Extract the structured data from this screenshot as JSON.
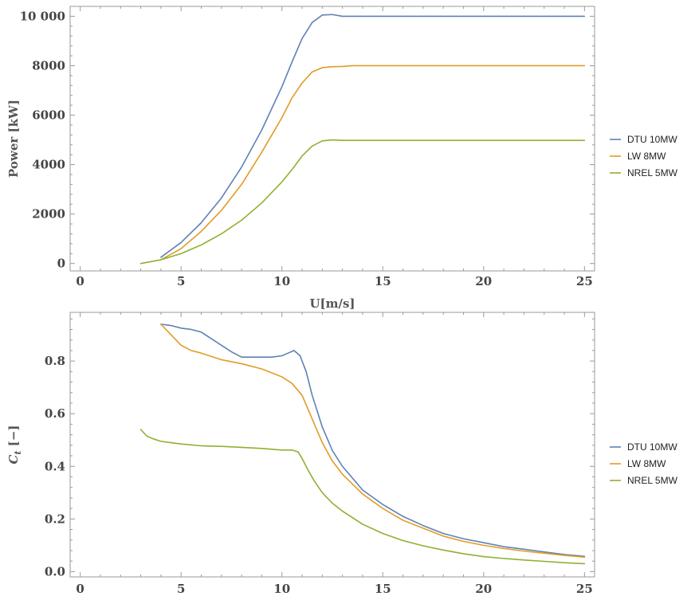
{
  "chart_data": [
    {
      "type": "line",
      "title": "",
      "xlabel": "U[m/s]",
      "ylabel": "Power [kW]",
      "xlim": [
        -0.5,
        25.5
      ],
      "ylim": [
        -300,
        10400
      ],
      "x_ticks": [
        0,
        5,
        10,
        15,
        20,
        25
      ],
      "x_tick_labels": [
        "0",
        "5",
        "10",
        "15",
        "20",
        "25"
      ],
      "y_ticks": [
        0,
        2000,
        4000,
        6000,
        8000,
        10000
      ],
      "y_tick_labels": [
        "0",
        "2000",
        "4000",
        "6000",
        "8000",
        "10 000"
      ],
      "grid": false,
      "legend_position": "right",
      "series": [
        {
          "name": "DTU 10MW",
          "color": "#5e81b5",
          "x": [
            4,
            5,
            6,
            7,
            8,
            9,
            10,
            10.5,
            11,
            11.5,
            12,
            12.5,
            13,
            14,
            16,
            18,
            20,
            22,
            25
          ],
          "y": [
            250,
            850,
            1650,
            2650,
            3900,
            5400,
            7150,
            8150,
            9100,
            9750,
            10050,
            10070,
            10000,
            10000,
            10000,
            10000,
            10000,
            10000,
            10000
          ]
        },
        {
          "name": "LW 8MW",
          "color": "#e19c24",
          "x": [
            4,
            5,
            6,
            7,
            8,
            9,
            10,
            10.5,
            11,
            11.5,
            12,
            12.5,
            13,
            13.5,
            15,
            18,
            20,
            22,
            25
          ],
          "y": [
            150,
            600,
            1300,
            2150,
            3200,
            4500,
            5900,
            6700,
            7300,
            7750,
            7920,
            7960,
            7970,
            8000,
            8000,
            8000,
            8000,
            8000,
            8000
          ]
        },
        {
          "name": "NREL 5MW",
          "color": "#8fb032",
          "x": [
            3,
            4,
            5,
            6,
            7,
            8,
            9,
            10,
            10.5,
            11,
            11.5,
            12,
            12.5,
            13,
            14,
            16,
            18,
            20,
            22,
            25
          ],
          "y": [
            0,
            150,
            400,
            750,
            1200,
            1750,
            2450,
            3300,
            3800,
            4350,
            4750,
            4960,
            5000,
            4980,
            4980,
            4980,
            4980,
            4980,
            4980,
            4980
          ]
        }
      ]
    },
    {
      "type": "line",
      "title": "",
      "xlabel": "",
      "ylabel": "C_t [−]",
      "ylabel_main": "C",
      "ylabel_sub": "t",
      "ylabel_rest": " [−]",
      "xlim": [
        -0.5,
        25.5
      ],
      "ylim": [
        -0.02,
        0.985
      ],
      "x_ticks": [
        0,
        5,
        10,
        15,
        20,
        25
      ],
      "x_tick_labels": [
        "0",
        "5",
        "10",
        "15",
        "20",
        "25"
      ],
      "y_ticks": [
        0,
        0.2,
        0.4,
        0.6,
        0.8
      ],
      "y_tick_labels": [
        "0.0",
        "0.2",
        "0.4",
        "0.6",
        "0.8"
      ],
      "grid": false,
      "legend_position": "right",
      "series": [
        {
          "name": "DTU 10MW",
          "color": "#5e81b5",
          "x": [
            4,
            4.5,
            5,
            5.5,
            6,
            6.5,
            7,
            7.5,
            8,
            8.5,
            9,
            9.5,
            10,
            10.3,
            10.6,
            10.9,
            11.2,
            11.5,
            12,
            12.5,
            13,
            14,
            15,
            16,
            17,
            18,
            19,
            20,
            21,
            22,
            23,
            24,
            25
          ],
          "y": [
            0.94,
            0.935,
            0.925,
            0.92,
            0.91,
            0.885,
            0.86,
            0.835,
            0.815,
            0.815,
            0.815,
            0.815,
            0.82,
            0.83,
            0.84,
            0.82,
            0.76,
            0.67,
            0.55,
            0.46,
            0.4,
            0.31,
            0.255,
            0.21,
            0.175,
            0.145,
            0.125,
            0.11,
            0.095,
            0.085,
            0.075,
            0.065,
            0.058
          ]
        },
        {
          "name": "LW 8MW",
          "color": "#e19c24",
          "x": [
            4,
            4.5,
            5,
            5.5,
            6,
            7,
            8,
            9,
            9.5,
            10,
            10.5,
            11,
            11.5,
            12,
            12.5,
            13,
            14,
            15,
            16,
            17,
            18,
            19,
            20,
            21,
            22,
            23,
            24,
            25
          ],
          "y": [
            0.94,
            0.9,
            0.86,
            0.84,
            0.83,
            0.805,
            0.79,
            0.77,
            0.755,
            0.74,
            0.715,
            0.67,
            0.58,
            0.49,
            0.42,
            0.37,
            0.295,
            0.24,
            0.195,
            0.165,
            0.135,
            0.115,
            0.1,
            0.088,
            0.078,
            0.07,
            0.062,
            0.055
          ]
        },
        {
          "name": "NREL 5MW",
          "color": "#8fb032",
          "x": [
            3,
            3.3,
            3.6,
            4,
            4.5,
            5,
            6,
            7,
            8,
            9,
            10,
            10.5,
            10.8,
            11,
            11.3,
            11.6,
            12,
            12.5,
            13,
            14,
            15,
            16,
            17,
            18,
            19,
            20,
            21,
            22,
            23,
            24,
            25
          ],
          "y": [
            0.54,
            0.515,
            0.505,
            0.495,
            0.49,
            0.485,
            0.478,
            0.476,
            0.472,
            0.468,
            0.462,
            0.462,
            0.455,
            0.43,
            0.385,
            0.345,
            0.3,
            0.26,
            0.23,
            0.18,
            0.145,
            0.118,
            0.098,
            0.082,
            0.068,
            0.057,
            0.05,
            0.044,
            0.039,
            0.034,
            0.03
          ]
        }
      ]
    }
  ]
}
